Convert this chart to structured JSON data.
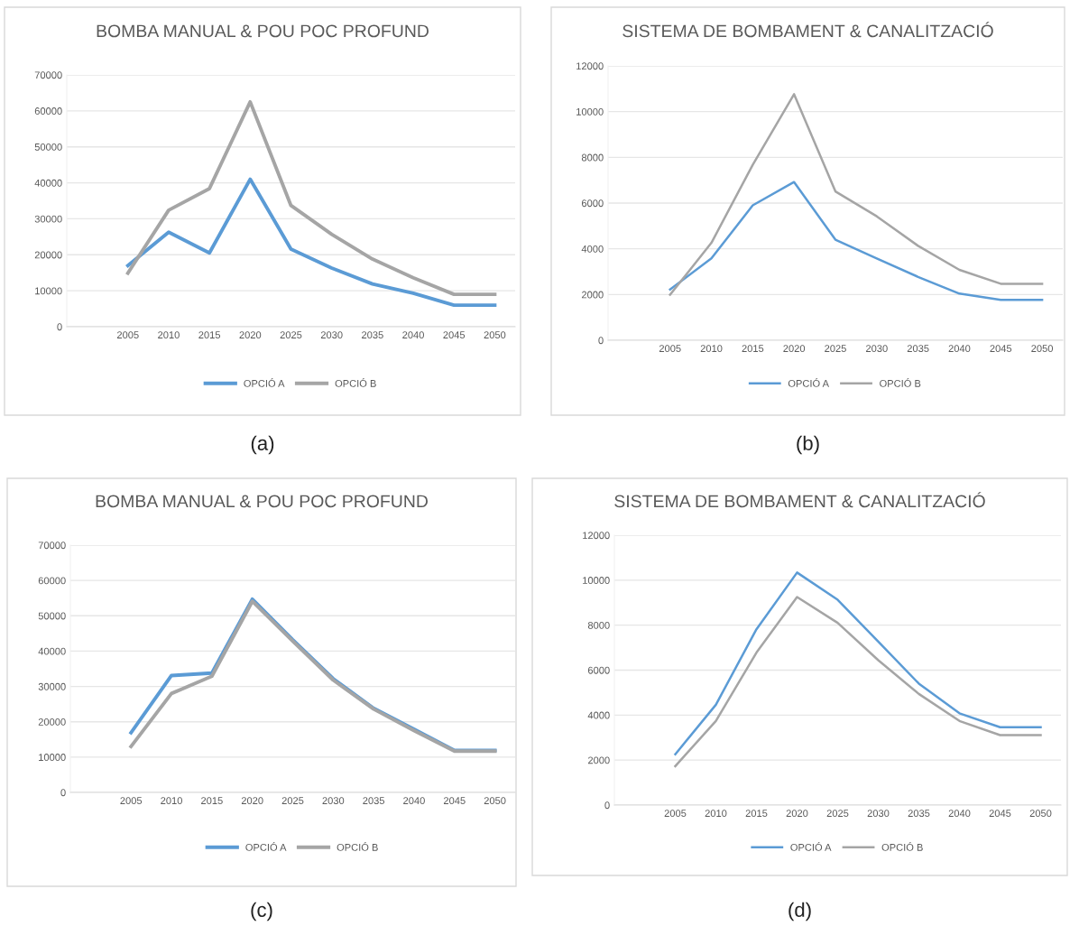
{
  "chart_data": [
    {
      "type": "line",
      "title": "BOMBA MANUAL & POU POC PROFUND",
      "categories": [
        null,
        "2005",
        "2010",
        "2015",
        "2020",
        "2025",
        "2030",
        "2035",
        "2040",
        "2045",
        "2050"
      ],
      "series": [
        {
          "name": "OPCIÓ A",
          "color": "#5b9bd5",
          "values": [
            null,
            17000,
            26300,
            20500,
            41000,
            21600,
            16300,
            11900,
            9300,
            6000,
            6000
          ]
        },
        {
          "name": "OPCIÓ B",
          "color": "#a5a5a5",
          "values": [
            null,
            14900,
            32400,
            38400,
            62500,
            33700,
            25700,
            18800,
            13600,
            9000,
            9000
          ]
        }
      ],
      "ylim": [
        0,
        70000
      ],
      "yticks": [
        0,
        10000,
        20000,
        30000,
        40000,
        50000,
        60000,
        70000
      ],
      "grid": "y",
      "legend": "bottom",
      "marker": "none",
      "line_style": "solid",
      "annotations": [
        "(a)"
      ]
    },
    {
      "type": "line",
      "title": "SISTEMA DE BOMBAMENT & CANALITZACIÓ",
      "categories": [
        null,
        "2005",
        "2010",
        "2015",
        "2020",
        "2025",
        "2030",
        "2035",
        "2040",
        "2045",
        "2050"
      ],
      "series": [
        {
          "name": "OPCIÓ A",
          "color": "#5b9bd5",
          "values": [
            null,
            2220,
            3580,
            5900,
            6920,
            4400,
            3580,
            2770,
            2040,
            1770,
            1770
          ]
        },
        {
          "name": "OPCIÓ B",
          "color": "#a5a5a5",
          "values": [
            null,
            1990,
            4260,
            7670,
            10760,
            6510,
            5420,
            4130,
            3080,
            2470,
            2470
          ]
        }
      ],
      "ylim": [
        0,
        12000
      ],
      "yticks": [
        0,
        2000,
        4000,
        6000,
        8000,
        10000,
        12000
      ],
      "grid": "y",
      "legend": "bottom",
      "marker": "none",
      "line_style": "solid",
      "annotations": [
        "(b)"
      ]
    },
    {
      "type": "line",
      "title": "BOMBA MANUAL & POU POC PROFUND",
      "categories": [
        null,
        "2005",
        "2010",
        "2015",
        "2020",
        "2025",
        "2030",
        "2035",
        "2040",
        "2045",
        "2050"
      ],
      "series": [
        {
          "name": "OPCIÓ A",
          "color": "#5b9bd5",
          "values": [
            null,
            16900,
            33100,
            33800,
            54700,
            43200,
            32200,
            23800,
            17900,
            11900,
            11900
          ]
        },
        {
          "name": "OPCIÓ B",
          "color": "#a5a5a5",
          "values": [
            null,
            13000,
            28000,
            32900,
            54100,
            42800,
            31800,
            23600,
            17500,
            11700,
            11700
          ]
        }
      ],
      "ylim": [
        0,
        70000
      ],
      "yticks": [
        0,
        10000,
        20000,
        30000,
        40000,
        50000,
        60000,
        70000
      ],
      "grid": "y",
      "legend": "bottom",
      "marker": "none",
      "line_style": "solid",
      "annotations": [
        "(c)"
      ]
    },
    {
      "type": "line",
      "title": "SISTEMA DE BOMBAMENT & CANALITZACIÓ",
      "categories": [
        null,
        "2005",
        "2010",
        "2015",
        "2020",
        "2025",
        "2030",
        "2035",
        "2040",
        "2045",
        "2050"
      ],
      "series": [
        {
          "name": "OPCIÓ A",
          "color": "#5b9bd5",
          "values": [
            null,
            2260,
            4460,
            7820,
            10340,
            9130,
            7270,
            5400,
            4080,
            3460,
            3460
          ]
        },
        {
          "name": "OPCIÓ B",
          "color": "#a5a5a5",
          "values": [
            null,
            1730,
            3740,
            6780,
            9250,
            8100,
            6440,
            4940,
            3740,
            3110,
            3110
          ]
        }
      ],
      "ylim": [
        0,
        12000
      ],
      "yticks": [
        0,
        2000,
        4000,
        6000,
        8000,
        10000,
        12000
      ],
      "grid": "y",
      "legend": "bottom",
      "marker": "none",
      "line_style": "solid",
      "annotations": [
        "(d)"
      ]
    }
  ]
}
